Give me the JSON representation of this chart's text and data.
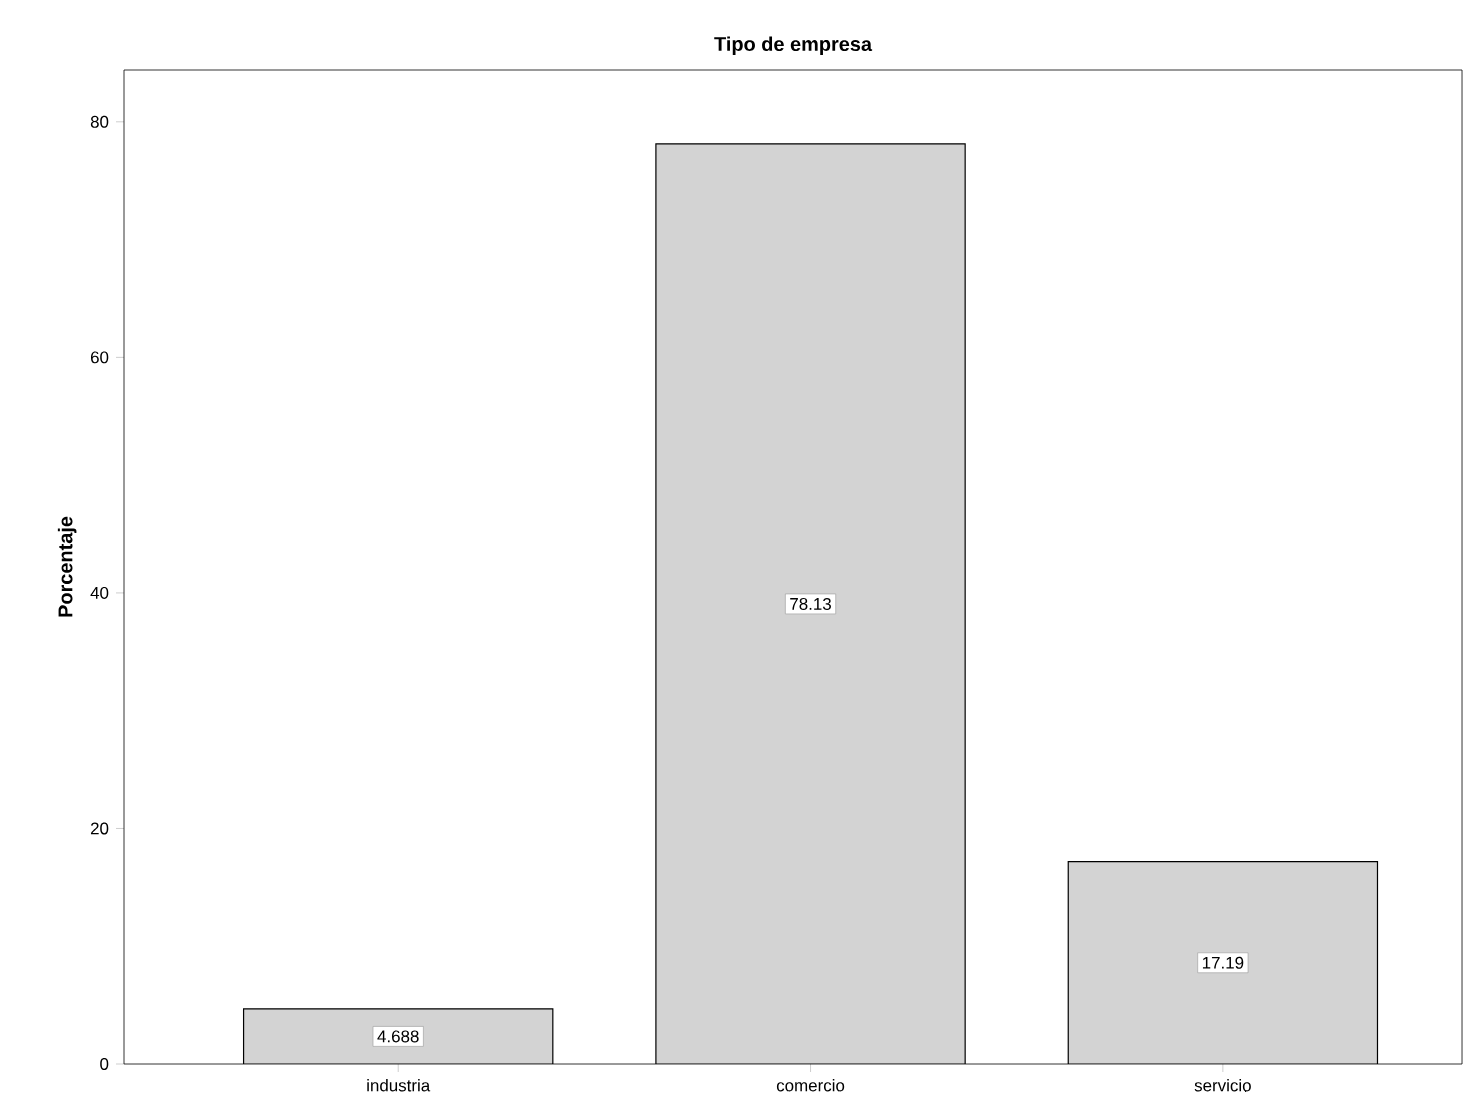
{
  "chart_data": {
    "type": "bar",
    "title": "Tipo de empresa",
    "ylabel": "Porcentaje",
    "categories": [
      "industria",
      "comercio",
      "servicio"
    ],
    "values": [
      4.688,
      78.13,
      17.19
    ],
    "value_labels": [
      "4.688",
      "78.13",
      "17.19"
    ],
    "color": "#d3d3d3",
    "ylim": [
      0,
      84.4
    ],
    "yticks": [
      0,
      20,
      40,
      60,
      80
    ]
  }
}
